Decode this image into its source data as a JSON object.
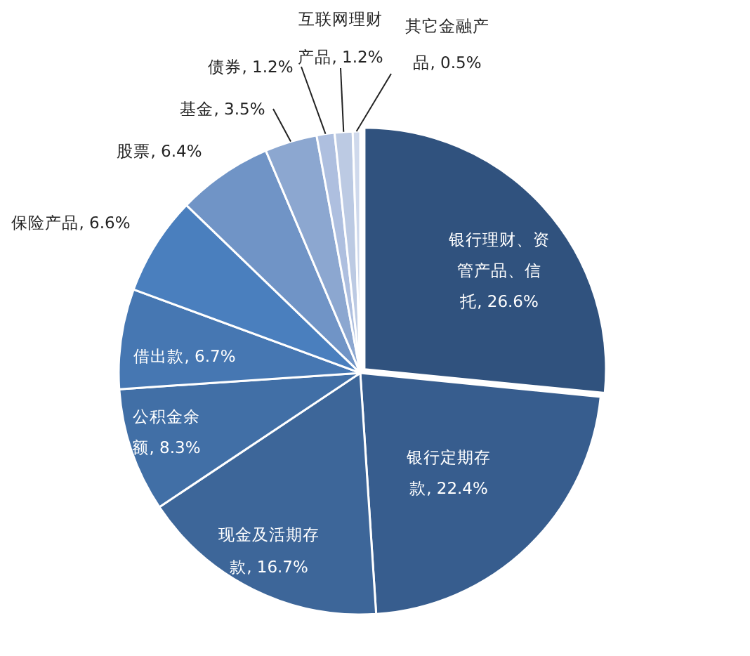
{
  "chart_data": {
    "type": "pie",
    "categories": [
      "银行理财、资管产品、信托",
      "银行定期存款",
      "现金及活期存款",
      "公积金余额",
      "借出款",
      "保险产品",
      "股票",
      "基金",
      "债券",
      "互联网理财产品",
      "其它金融产品"
    ],
    "values": [
      26.6,
      22.4,
      16.7,
      8.3,
      6.7,
      6.6,
      6.4,
      3.5,
      1.2,
      1.2,
      0.5
    ],
    "value_labels": [
      "26.6%",
      "22.4%",
      "16.7%",
      "8.3%",
      "6.7%",
      "6.6%",
      "6.4%",
      "3.5%",
      "1.2%",
      "1.2%",
      "0.5%"
    ],
    "colors": [
      "#30527e",
      "#375d8e",
      "#3d6699",
      "#416fa6",
      "#4677b2",
      "#4a7fbe",
      "#7094c6",
      "#8ca7d0",
      "#aebfdf",
      "#bccae3",
      "#cfd9ec"
    ]
  }
}
